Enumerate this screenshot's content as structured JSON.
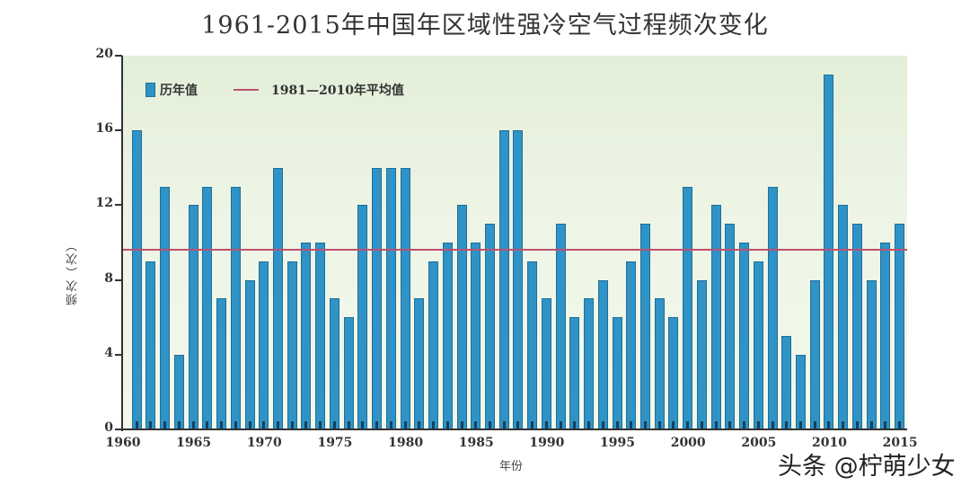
{
  "chart_data": {
    "type": "bar",
    "title": "1961-2015年中国年区域性强冷空气过程频次变化",
    "xlabel": "年份",
    "ylabel": "频次（次）",
    "ylim": [
      0,
      20
    ],
    "yticks": [
      0,
      4,
      8,
      12,
      16,
      20
    ],
    "xticks": [
      1960,
      1965,
      1970,
      1975,
      1980,
      1985,
      1990,
      1995,
      2000,
      2005,
      2010,
      2015
    ],
    "xlim": [
      1960,
      2015.5
    ],
    "grid": false,
    "legend_position": "top-left",
    "legend": [
      "历年值",
      "1981—2010年平均值"
    ],
    "categories": [
      1961,
      1962,
      1963,
      1964,
      1965,
      1966,
      1967,
      1968,
      1969,
      1970,
      1971,
      1972,
      1973,
      1974,
      1975,
      1976,
      1977,
      1978,
      1979,
      1980,
      1981,
      1982,
      1983,
      1984,
      1985,
      1986,
      1987,
      1988,
      1989,
      1990,
      1991,
      1992,
      1993,
      1994,
      1995,
      1996,
      1997,
      1998,
      1999,
      2000,
      2001,
      2002,
      2003,
      2004,
      2005,
      2006,
      2007,
      2008,
      2009,
      2010,
      2011,
      2012,
      2013,
      2014,
      2015
    ],
    "series": [
      {
        "name": "历年值",
        "type": "bar",
        "color": "#2f93c6",
        "values": [
          16,
          9,
          13,
          4,
          12,
          13,
          7,
          13,
          8,
          9,
          14,
          9,
          10,
          10,
          7,
          6,
          12,
          14,
          14,
          14,
          7,
          9,
          10,
          12,
          10,
          11,
          16,
          16,
          9,
          7,
          11,
          6,
          7,
          8,
          6,
          9,
          11,
          7,
          6,
          13,
          8,
          12,
          11,
          10,
          9,
          13,
          5,
          4,
          8,
          19,
          12,
          11,
          8,
          10,
          11
        ]
      },
      {
        "name": "1981—2010年平均值",
        "type": "hline",
        "color": "#c0506e",
        "value": 9.6
      }
    ]
  },
  "title": "1961-2015年中国年区域性强冷空气过程频次变化",
  "axes": {
    "ylabel": "频次（次）",
    "xlabel": "年份",
    "yticks": [
      "0",
      "4",
      "8",
      "12",
      "16",
      "20"
    ],
    "xticks": [
      "1960",
      "1965",
      "1970",
      "1975",
      "1980",
      "1985",
      "1990",
      "1995",
      "2000",
      "2005",
      "2010",
      "2015"
    ]
  },
  "legend": {
    "bar_label": "历年值",
    "line_label": "1981—2010年平均值"
  },
  "watermark": "头条 @柠萌少女"
}
